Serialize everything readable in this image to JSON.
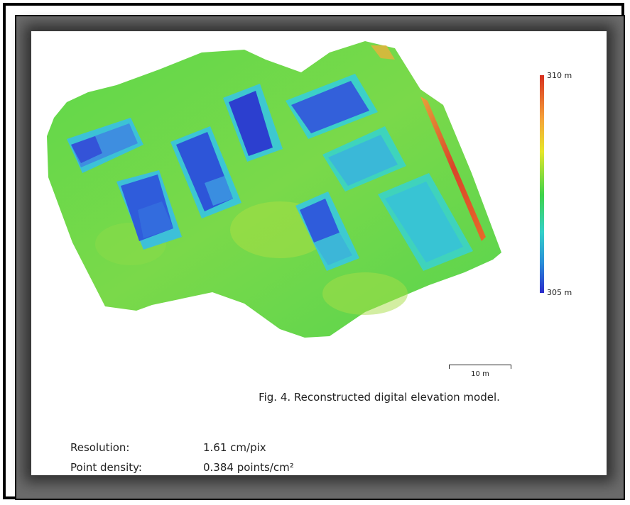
{
  "legend": {
    "max_label": "310 m",
    "min_label": "305 m",
    "gradient_colors": [
      "#d7301f",
      "#f5c242",
      "#e6e62a",
      "#3ed34a",
      "#34d0c8",
      "#2a8fd8",
      "#2b2bcc"
    ]
  },
  "scale_bar": {
    "label": "10 m"
  },
  "caption": "Fig. 4. Reconstructed digital elevation model.",
  "info": [
    {
      "key": "Resolution:",
      "value": "1.61 cm/pix"
    },
    {
      "key": "Point density:",
      "value": "0.384 points/cm²"
    }
  ],
  "colors": {
    "terrain_green": "#4fd34a",
    "roof_blue": "#3a6ee0",
    "roof_dark_blue": "#2f4fd6",
    "roof_cyan": "#39c2d6",
    "edge_red": "#e0502a"
  }
}
